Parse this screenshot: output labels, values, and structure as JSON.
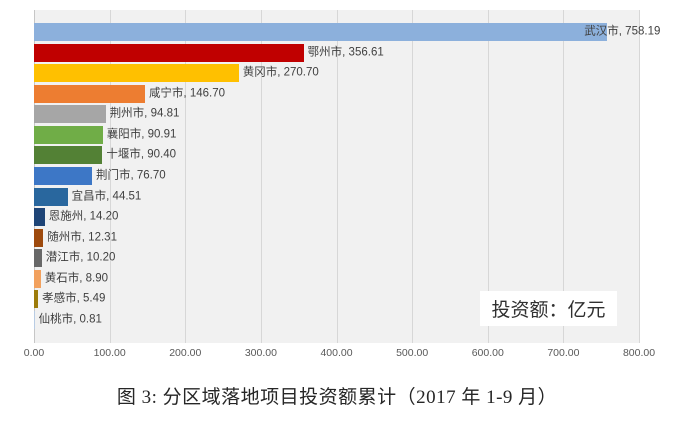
{
  "figure": {
    "caption": "图 3: 分区域落地项目投资额累计（2017 年 1-9 月）",
    "annotation": "投资额：亿元"
  },
  "chart_data": {
    "type": "bar",
    "orientation": "horizontal",
    "title": "",
    "caption": "图 3: 分区域落地项目投资额累计（2017 年 1-9 月）",
    "unit_label": "投资额：亿元",
    "categories": [
      "武汉市",
      "鄂州市",
      "黄冈市",
      "咸宁市",
      "荆州市",
      "襄阳市",
      "十堰市",
      "荆门市",
      "宜昌市",
      "恩施州",
      "随州市",
      "潜江市",
      "黄石市",
      "孝感市",
      "仙桃市"
    ],
    "values": [
      758.19,
      356.61,
      270.7,
      146.7,
      94.81,
      90.91,
      90.4,
      76.7,
      44.51,
      14.2,
      12.31,
      10.2,
      8.9,
      5.49,
      0.81
    ],
    "data_labels": [
      "武汉市, 758.19",
      "鄂州市, 356.61",
      "黄冈市, 270.70",
      "咸宁市, 146.70",
      "荆州市, 94.81",
      "襄阳市, 90.91",
      "十堰市, 90.40",
      "荆门市, 76.70",
      "宜昌市, 44.51",
      "恩施州, 14.20",
      "随州市, 12.31",
      "潜江市, 10.20",
      "黄石市, 8.90",
      "孝感市, 5.49",
      "仙桃市, 0.81"
    ],
    "colors": [
      "#8CB0DC",
      "#C00000",
      "#FFC000",
      "#ED7D31",
      "#A6A6A6",
      "#70AD47",
      "#538135",
      "#3D77C6",
      "#29679E",
      "#1F4577",
      "#9E4A0D",
      "#686868",
      "#F2A15E",
      "#9C7B0A",
      "#B8CCE4"
    ],
    "x_ticks": [
      "0.00",
      "100.00",
      "200.00",
      "300.00",
      "400.00",
      "500.00",
      "600.00",
      "700.00",
      "800.00"
    ],
    "xlim": [
      0,
      800
    ],
    "xlabel": "",
    "ylabel": "",
    "grid": "vertical",
    "legend_position": "none",
    "plot_bg_color": "#F1F1F1",
    "gridline_color": "#D7D7D7",
    "data_label_color": "#3F3F3F",
    "axis_tick_color": "#595959"
  }
}
